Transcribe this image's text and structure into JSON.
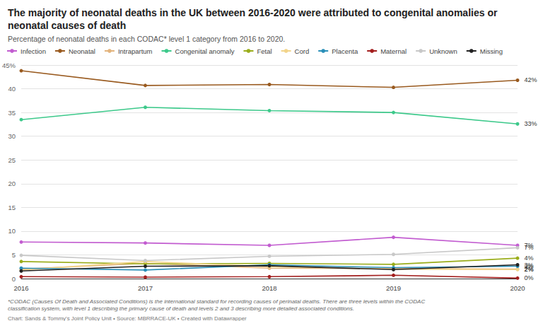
{
  "chart_data": {
    "type": "line",
    "title": "The majority of neonatal deaths in the UK between 2016-2020 were attributed to congenital anomalies or neonatal causes of death",
    "subtitle": "Percentage of neonatal deaths in each CODAC* level 1 category from 2016 to 2020.",
    "notes": "*CODAC (Causes Of Death and Associated Conditions) is the international standard for recording causes of perinatal deaths. There are three levels within the CODAC classification system, with level 1 describing the primary cause of death and levels 2 and 3 describing more detailed associated conditions.",
    "source": "Chart: Sands & Tommy's Joint Policy Unit • Source: MBRRACE-UK • Created with Datawrapper",
    "categories": [
      "2016",
      "2017",
      "2018",
      "2019",
      "2020"
    ],
    "series": [
      {
        "name": "Infection",
        "color": "#c25cd0",
        "values": [
          7.7,
          7.5,
          7.0,
          8.7,
          7.0
        ],
        "value_labels": [
          null,
          null,
          null,
          null,
          "7%"
        ]
      },
      {
        "name": "Neonatal",
        "color": "#995a1f",
        "values": [
          43.8,
          40.7,
          40.9,
          40.3,
          41.8
        ],
        "value_labels": [
          null,
          null,
          null,
          null,
          "42%"
        ]
      },
      {
        "name": "Intrapartum",
        "color": "#e3b47e",
        "values": [
          2.0,
          3.2,
          2.2,
          2.1,
          2.0
        ],
        "value_labels": [
          null,
          null,
          null,
          null,
          "2%"
        ]
      },
      {
        "name": "Congenital anomaly",
        "color": "#3dc98b",
        "values": [
          33.5,
          36.1,
          35.4,
          35.0,
          32.6
        ],
        "value_labels": [
          null,
          null,
          null,
          null,
          "33%"
        ]
      },
      {
        "name": "Fetal",
        "color": "#9aad1b",
        "values": [
          3.6,
          3.1,
          3.2,
          3.0,
          4.3
        ],
        "value_labels": [
          null,
          null,
          null,
          null,
          "4%"
        ]
      },
      {
        "name": "Cord",
        "color": "#f2d48a",
        "values": [
          1.8,
          3.6,
          2.5,
          2.0,
          1.9
        ],
        "value_labels": [
          null,
          null,
          null,
          null,
          "2%"
        ]
      },
      {
        "name": "Placenta",
        "color": "#2a8fb8",
        "values": [
          2.2,
          1.8,
          2.9,
          2.3,
          2.6
        ],
        "value_labels": [
          null,
          null,
          null,
          null,
          "3%"
        ]
      },
      {
        "name": "Maternal",
        "color": "#a31e1e",
        "values": [
          0.4,
          0.3,
          0.4,
          0.7,
          0.1
        ],
        "value_labels": [
          null,
          null,
          null,
          null,
          "0%"
        ]
      },
      {
        "name": "Unknown",
        "color": "#c8c8c8",
        "values": [
          4.9,
          3.8,
          4.7,
          5.1,
          6.5
        ],
        "value_labels": [
          null,
          null,
          null,
          null,
          "7%"
        ]
      },
      {
        "name": "Missing",
        "color": "#222222",
        "values": [
          1.6,
          2.6,
          2.7,
          1.9,
          2.9
        ],
        "value_labels": [
          null,
          null,
          null,
          null,
          "3%"
        ]
      }
    ],
    "ylim": [
      0,
      45
    ],
    "yticks": [
      0,
      5,
      10,
      15,
      20,
      25,
      30,
      35,
      40,
      {
        "value": 45,
        "label": "45%"
      }
    ],
    "grid": true,
    "legend": "top-left",
    "marker": "circle"
  }
}
